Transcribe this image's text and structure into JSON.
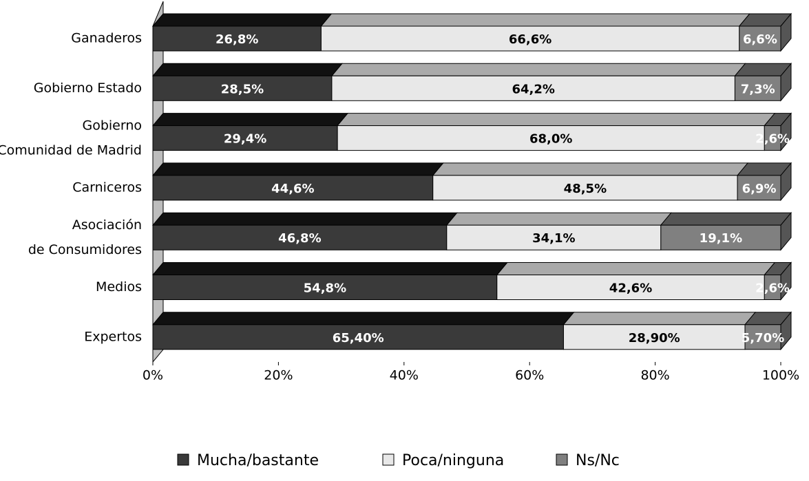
{
  "chart_data": {
    "type": "stacked-bar-3d",
    "categories": [
      "Ganaderos",
      "Gobierno Estado",
      "Gobierno\nComunidad de Madrid",
      "Carniceros",
      "Asociación\nde Consumidores",
      "Medios",
      "Expertos"
    ],
    "series": [
      {
        "name": "Mucha/bastante",
        "color": "#3a3a3a",
        "top_color": "#111111",
        "label_color": "#ffffff",
        "values": [
          26.8,
          28.5,
          29.4,
          44.6,
          46.8,
          54.8,
          65.4
        ],
        "value_labels": [
          "26,8%",
          "28,5%",
          "29,4%",
          "44,6%",
          "46,8%",
          "54,8%",
          "65,40%"
        ]
      },
      {
        "name": "Poca/ninguna",
        "color": "#e8e8e8",
        "top_color": "#aaaaaa",
        "label_color": "#000000",
        "values": [
          66.6,
          64.2,
          68.0,
          48.5,
          34.1,
          42.6,
          28.9
        ],
        "value_labels": [
          "66,6%",
          "64,2%",
          "68,0%",
          "48,5%",
          "34,1%",
          "42,6%",
          "28,90%"
        ]
      },
      {
        "name": "Ns/Nc",
        "color": "#808080",
        "top_color": "#555555",
        "label_color": "#ffffff",
        "values": [
          6.6,
          7.3,
          2.6,
          6.9,
          19.1,
          2.6,
          5.7
        ],
        "value_labels": [
          "6,6%",
          "7,3%",
          "2,6%",
          "6,9%",
          "19,1%",
          "2,6%",
          "5,70%"
        ]
      }
    ],
    "xlim": [
      0,
      100
    ],
    "xticks": [
      {
        "value": 0,
        "label": "0%"
      },
      {
        "value": 20,
        "label": "20%"
      },
      {
        "value": 40,
        "label": "40%"
      },
      {
        "value": 60,
        "label": "60%"
      },
      {
        "value": 80,
        "label": "80%"
      },
      {
        "value": 100,
        "label": "100%"
      }
    ],
    "legend": "bottom"
  }
}
